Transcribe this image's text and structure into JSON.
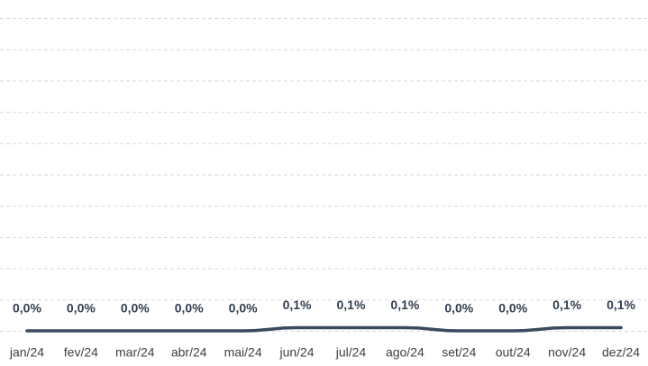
{
  "chart_data": {
    "type": "line",
    "categories": [
      "jan/24",
      "fev/24",
      "mar/24",
      "abr/24",
      "mai/24",
      "jun/24",
      "jul/24",
      "ago/24",
      "set/24",
      "out/24",
      "nov/24",
      "dez/24"
    ],
    "series": [
      {
        "color": "#3b4a5e",
        "values": [
          0.0,
          0.0,
          0.0,
          0.0,
          0.0,
          0.1,
          0.1,
          0.1,
          0.0,
          0.0,
          0.1,
          0.1
        ],
        "value_labels": [
          "0,0%",
          "0,0%",
          "0,0%",
          "0,0%",
          "0,0%",
          "0,1%",
          "0,1%",
          "0,1%",
          "0,0%",
          "0,0%",
          "0,1%",
          "0,1%"
        ]
      }
    ],
    "ylim": [
      0,
      10
    ],
    "yticks": [
      0,
      1,
      2,
      3,
      4,
      5,
      6,
      7,
      8,
      9,
      10
    ],
    "grid": true
  }
}
